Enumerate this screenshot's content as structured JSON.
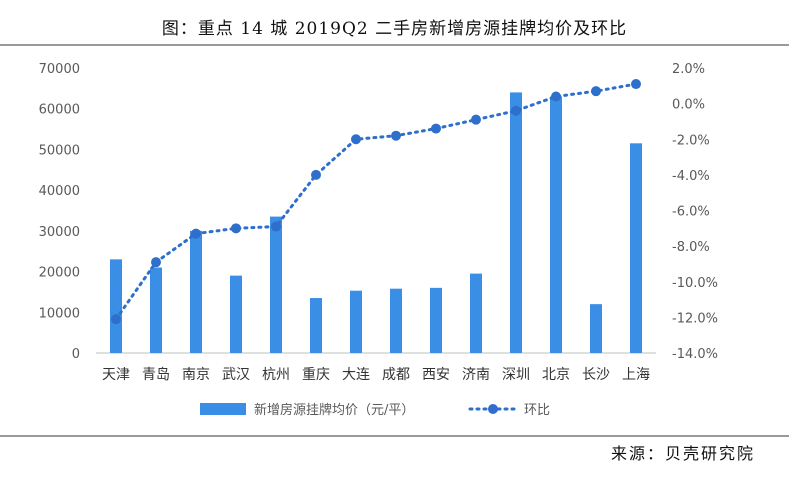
{
  "title": "图：重点 14 城 2019Q2 二手房新增房源挂牌均价及环比",
  "source": "来源：贝壳研究院",
  "colors": {
    "bar": "#3b8ee6",
    "line": "#2e6fcc",
    "grid_axis": "#bfbfbf"
  },
  "chart_data": {
    "type": "bar",
    "categories": [
      "天津",
      "青岛",
      "南京",
      "武汉",
      "杭州",
      "重庆",
      "大连",
      "成都",
      "西安",
      "济南",
      "深圳",
      "北京",
      "长沙",
      "上海"
    ],
    "series": [
      {
        "name": "新增房源挂牌均价（元/平）",
        "type": "bar",
        "axis": "left",
        "values": [
          23000,
          21000,
          30000,
          19000,
          33500,
          13500,
          15300,
          15800,
          16000,
          19500,
          64000,
          63000,
          12000,
          51500
        ]
      },
      {
        "name": "环比",
        "type": "line",
        "axis": "right",
        "values": [
          -12.1,
          -8.9,
          -7.3,
          -7.0,
          -6.9,
          -4.0,
          -2.0,
          -1.8,
          -1.4,
          -0.9,
          -0.4,
          0.4,
          0.7,
          1.1
        ]
      }
    ],
    "ylim_left": [
      0,
      70000
    ],
    "yticks_left": [
      "0",
      "10000",
      "20000",
      "30000",
      "40000",
      "50000",
      "60000",
      "70000"
    ],
    "ylim_right": [
      -14.0,
      2.0
    ],
    "yticks_right": [
      "-14.0%",
      "-12.0%",
      "-10.0%",
      "-8.0%",
      "-6.0%",
      "-4.0%",
      "-2.0%",
      "0.0%",
      "2.0%"
    ],
    "grid": false,
    "legend_position": "bottom"
  }
}
